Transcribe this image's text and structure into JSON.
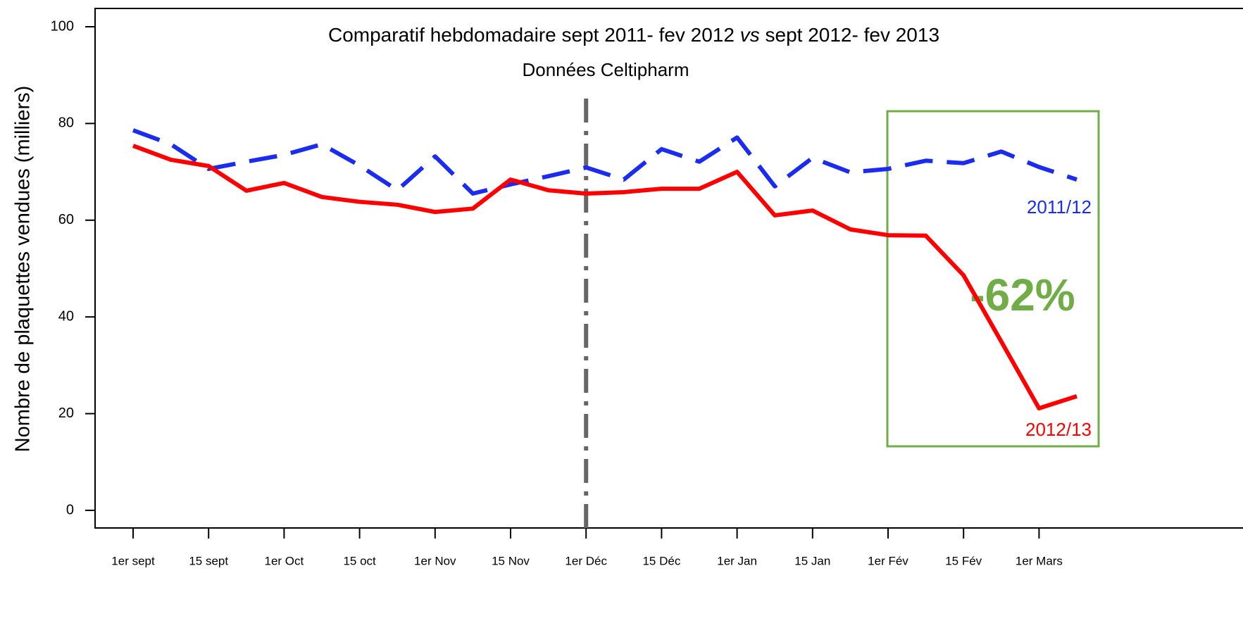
{
  "chart_data": {
    "type": "line",
    "title_parts": [
      "Comparatif hebdomadaire sept 2011- fev 2012 ",
      "vs",
      " sept 2012- fev 2013"
    ],
    "subtitle": "Données Celtipharm",
    "y_label": "Nombre de plaquettes vendues  (milliers)",
    "categories": [
      "1er sept",
      null,
      "15 sept",
      null,
      "1er Oct",
      null,
      "15 oct",
      null,
      "1er Nov",
      null,
      "15 Nov",
      null,
      "1er Déc",
      null,
      "15 Déc",
      null,
      "1er Jan",
      null,
      "15 Jan",
      null,
      "1er Fév",
      null,
      "15 Fév",
      null,
      "1er Mars",
      null
    ],
    "series": [
      {
        "name": "2011/12",
        "color": "#1a2cf0",
        "dash": true,
        "values": [
          78.6,
          75.7,
          70.6,
          72.1,
          73.5,
          75.7,
          71.3,
          66.2,
          73.2,
          65.5,
          67.4,
          69.1,
          70.9,
          68.4,
          74.7,
          72.1,
          77.1,
          67.0,
          72.9,
          69.9,
          70.6,
          72.3,
          71.8,
          74.2,
          71.0,
          68.4
        ]
      },
      {
        "name": "2012/13",
        "color": "#ff0000",
        "dash": false,
        "values": [
          75.4,
          72.5,
          71.2,
          66.1,
          67.7,
          64.8,
          63.8,
          63.2,
          61.7,
          62.4,
          68.4,
          66.2,
          65.5,
          65.8,
          66.5,
          66.5,
          70.0,
          61.0,
          62.0,
          58.1,
          56.9,
          56.8,
          48.6,
          34.9,
          21.1,
          23.6
        ]
      }
    ],
    "annotation": "-62%",
    "ylim": [
      0,
      100
    ],
    "yticks": [
      0,
      20,
      40,
      60,
      80,
      100
    ],
    "grid": false
  }
}
